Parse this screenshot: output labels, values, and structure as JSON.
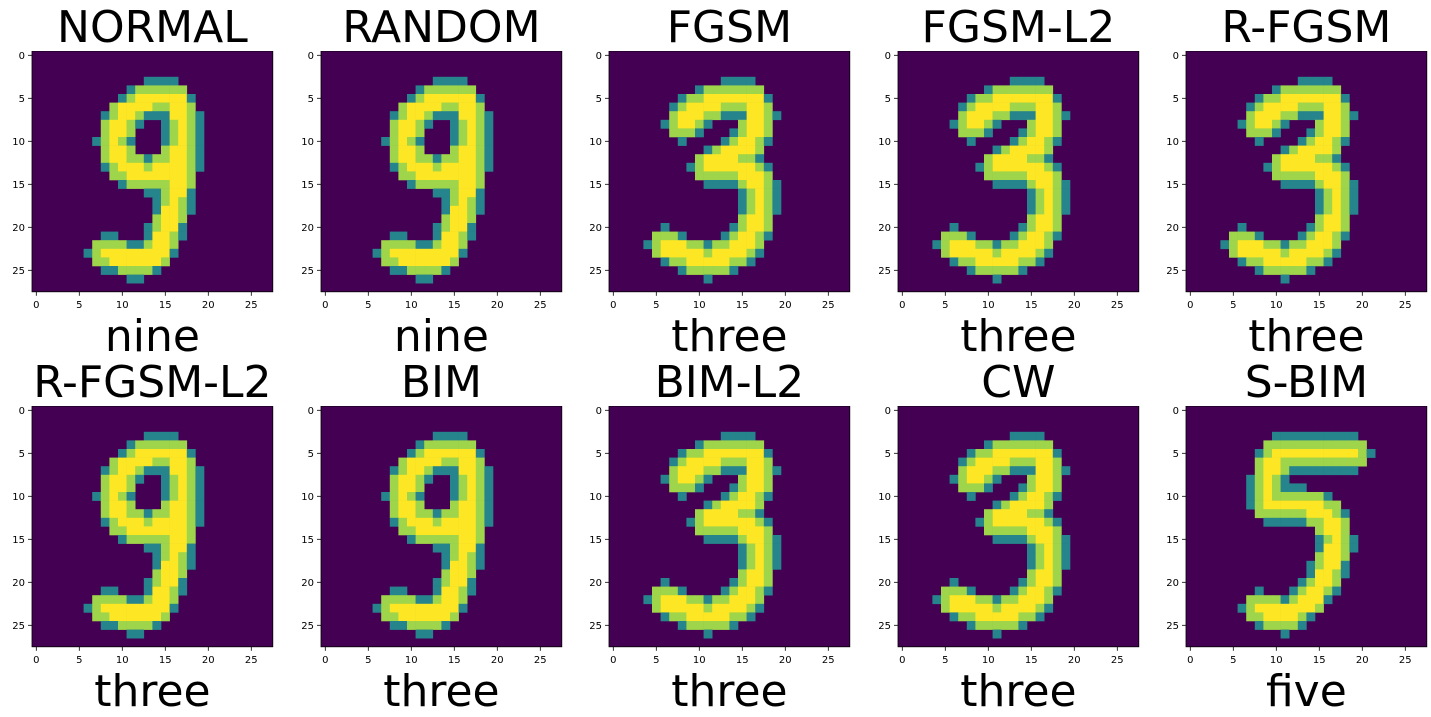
{
  "chart_data": {
    "type": "heatmap",
    "colormap": "viridis",
    "colors": {
      "background": "#440154",
      "stroke_mid": "#21918c",
      "stroke_high": "#fde725"
    },
    "image_size": [
      28,
      28
    ],
    "xlim": [
      -0.5,
      27.5
    ],
    "ylim": [
      27.5,
      -0.5
    ],
    "x_ticks": [
      0,
      5,
      10,
      15,
      20,
      25
    ],
    "y_ticks": [
      0,
      5,
      10,
      15,
      20,
      25
    ],
    "grid": false,
    "panels": [
      {
        "title": "NORMAL",
        "xlabel": "nine",
        "glyph": "9"
      },
      {
        "title": "RANDOM",
        "xlabel": "nine",
        "glyph": "9"
      },
      {
        "title": "FGSM",
        "xlabel": "three",
        "glyph": "3"
      },
      {
        "title": "FGSM-L2",
        "xlabel": "three",
        "glyph": "3"
      },
      {
        "title": "R-FGSM",
        "xlabel": "three",
        "glyph": "3"
      },
      {
        "title": "R-FGSM-L2",
        "xlabel": "three",
        "glyph": "9"
      },
      {
        "title": "BIM",
        "xlabel": "three",
        "glyph": "9"
      },
      {
        "title": "BIM-L2",
        "xlabel": "three",
        "glyph": "3"
      },
      {
        "title": "CW",
        "xlabel": "three",
        "glyph": "3"
      },
      {
        "title": "S-BIM",
        "xlabel": "five",
        "glyph": "5"
      }
    ]
  }
}
